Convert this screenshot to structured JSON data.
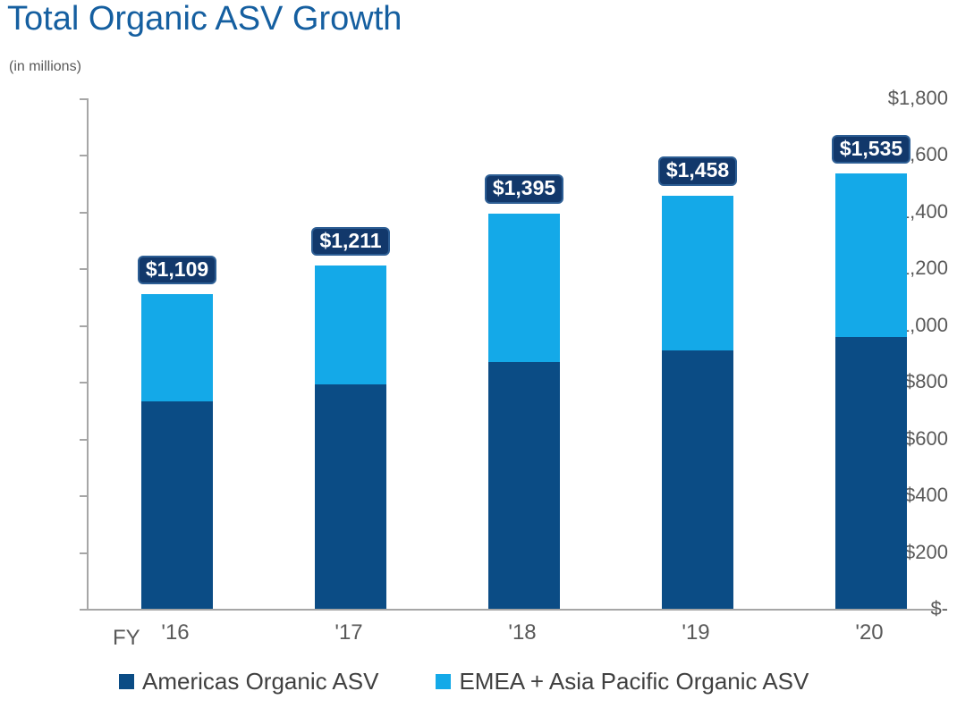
{
  "title": "Total Organic ASV Growth",
  "subtitle": "(in millions)",
  "colors": {
    "title_text": "#155FA0",
    "americas_bar": "#0B4C85",
    "emea_bar": "#14A9E8",
    "badge_bg": "#12386B",
    "badge_border": "#2D5E94",
    "axis_line": "#A6A6A6",
    "axis_text": "#595959",
    "legend_text": "#404040"
  },
  "chart_data": {
    "type": "bar",
    "stacked": true,
    "title": "Total Organic ASV Growth",
    "units": "(in millions)",
    "x_prefix": "FY",
    "categories": [
      "'16",
      "'17",
      "'18",
      "'19",
      "'20"
    ],
    "series": [
      {
        "name": "Americas Organic ASV",
        "color": "#0B4C85",
        "values": [
          730,
          790,
          870,
          910,
          957
        ]
      },
      {
        "name": "EMEA + Asia Pacific Organic ASV",
        "color": "#14A9E8",
        "values": [
          379,
          421,
          525,
          548,
          578
        ]
      }
    ],
    "totals": [
      1109,
      1211,
      1395,
      1458,
      1535
    ],
    "total_labels": [
      "$1,109",
      "$1,211",
      "$1,395",
      "$1,458",
      "$1,535"
    ],
    "ylim": [
      0,
      1800
    ],
    "yticks": [
      {
        "value": 1800,
        "label": "$1,800"
      },
      {
        "value": 1600,
        "label": "$1,600"
      },
      {
        "value": 1400,
        "label": "$1,400"
      },
      {
        "value": 1200,
        "label": "$1,200"
      },
      {
        "value": 1000,
        "label": "$1,000"
      },
      {
        "value": 800,
        "label": "$800"
      },
      {
        "value": 600,
        "label": "$600"
      },
      {
        "value": 400,
        "label": "$400"
      },
      {
        "value": 200,
        "label": "$200"
      },
      {
        "value": 0,
        "label": "$-"
      }
    ],
    "grid": false,
    "legend_position": "bottom"
  }
}
